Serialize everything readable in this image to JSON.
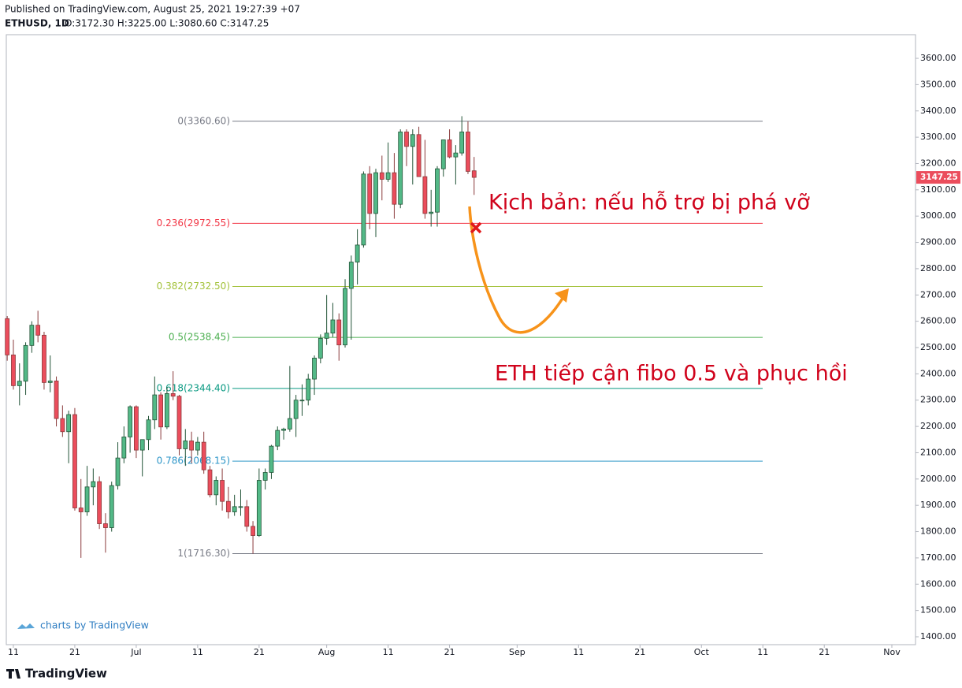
{
  "header": {
    "published": "Published on TradingView.com, August 25, 2021 19:27:39 +07",
    "symbol": "ETHUSD, 1D",
    "ohlc": "O:3172.30 H:3225.00 L:3080.60 C:3147.25"
  },
  "branding": {
    "watermark": "charts by TradingView",
    "footer": "TradingView"
  },
  "chart_data": {
    "type": "candlestick",
    "up_color": "#53b987",
    "down_color": "#eb4d5c",
    "x": [
      "2021-06-10",
      "2021-06-11",
      "2021-06-12",
      "2021-06-13",
      "2021-06-14",
      "2021-06-15",
      "2021-06-16",
      "2021-06-17",
      "2021-06-18",
      "2021-06-19",
      "2021-06-20",
      "2021-06-21",
      "2021-06-22",
      "2021-06-23",
      "2021-06-24",
      "2021-06-25",
      "2021-06-26",
      "2021-06-27",
      "2021-06-28",
      "2021-06-29",
      "2021-06-30",
      "2021-07-01",
      "2021-07-02",
      "2021-07-03",
      "2021-07-04",
      "2021-07-05",
      "2021-07-06",
      "2021-07-07",
      "2021-07-08",
      "2021-07-09",
      "2021-07-10",
      "2021-07-11",
      "2021-07-12",
      "2021-07-13",
      "2021-07-14",
      "2021-07-15",
      "2021-07-16",
      "2021-07-17",
      "2021-07-18",
      "2021-07-19",
      "2021-07-20",
      "2021-07-21",
      "2021-07-22",
      "2021-07-23",
      "2021-07-24",
      "2021-07-25",
      "2021-07-26",
      "2021-07-27",
      "2021-07-28",
      "2021-07-29",
      "2021-07-30",
      "2021-07-31",
      "2021-08-01",
      "2021-08-02",
      "2021-08-03",
      "2021-08-04",
      "2021-08-05",
      "2021-08-06",
      "2021-08-07",
      "2021-08-08",
      "2021-08-09",
      "2021-08-10",
      "2021-08-11",
      "2021-08-12",
      "2021-08-13",
      "2021-08-14",
      "2021-08-15",
      "2021-08-16",
      "2021-08-17",
      "2021-08-18",
      "2021-08-19",
      "2021-08-20",
      "2021-08-21",
      "2021-08-22",
      "2021-08-23",
      "2021-08-24",
      "2021-08-25"
    ],
    "open": [
      2610,
      2472,
      2355,
      2372,
      2508,
      2585,
      2547,
      2367,
      2373,
      2230,
      2180,
      2245,
      1890,
      1875,
      1970,
      1990,
      1830,
      1815,
      1975,
      2080,
      2160,
      2275,
      2110,
      2150,
      2225,
      2320,
      2198,
      2325,
      2315,
      2115,
      2145,
      2110,
      2140,
      2035,
      1940,
      1995,
      1915,
      1875,
      1895,
      1895,
      1820,
      1785,
      1995,
      2025,
      2125,
      2185,
      2190,
      2230,
      2300,
      2300,
      2380,
      2460,
      2535,
      2555,
      2605,
      2510,
      2725,
      2825,
      2890,
      3160,
      3010,
      3165,
      3140,
      3165,
      3045,
      3320,
      3265,
      3310,
      3150,
      3010,
      3015,
      3180,
      3290,
      3225,
      3240,
      3320,
      3172.3
    ],
    "high": [
      2620,
      2530,
      2440,
      2520,
      2600,
      2640,
      2560,
      2470,
      2390,
      2280,
      2260,
      2270,
      2000,
      2050,
      2040,
      2010,
      1870,
      1990,
      2140,
      2200,
      2280,
      2280,
      2150,
      2240,
      2390,
      2330,
      2350,
      2410,
      2320,
      2190,
      2180,
      2160,
      2180,
      2050,
      2010,
      2040,
      1970,
      1940,
      1960,
      1920,
      1840,
      2040,
      2040,
      2130,
      2200,
      2195,
      2430,
      2320,
      2360,
      2400,
      2470,
      2550,
      2700,
      2670,
      2630,
      2760,
      2850,
      2950,
      3170,
      3190,
      3180,
      3230,
      3280,
      3240,
      3330,
      3330,
      3330,
      3340,
      3290,
      3100,
      3190,
      3290,
      3330,
      3270,
      3380,
      3360,
      3225
    ],
    "low": [
      2450,
      2340,
      2280,
      2320,
      2480,
      2520,
      2340,
      2330,
      2200,
      2160,
      2060,
      1880,
      1700,
      1860,
      1900,
      1810,
      1720,
      1800,
      1960,
      2060,
      2100,
      2080,
      2010,
      2110,
      2190,
      2150,
      2190,
      2300,
      2090,
      2050,
      2060,
      2090,
      2020,
      1930,
      1900,
      1880,
      1850,
      1860,
      1860,
      1800,
      1716,
      1780,
      1960,
      2000,
      2110,
      2150,
      2180,
      2160,
      2240,
      2280,
      2320,
      2440,
      2510,
      2540,
      2450,
      2500,
      2530,
      2740,
      2880,
      2950,
      2920,
      3060,
      3130,
      2990,
      3030,
      3190,
      3120,
      3150,
      2990,
      2960,
      2960,
      3150,
      3220,
      3120,
      3230,
      3160,
      3080.6
    ],
    "close": [
      2472,
      2355,
      2372,
      2508,
      2585,
      2547,
      2367,
      2373,
      2230,
      2180,
      2245,
      1890,
      1875,
      1970,
      1990,
      1830,
      1815,
      1975,
      2080,
      2160,
      2275,
      2110,
      2150,
      2225,
      2320,
      2198,
      2325,
      2315,
      2115,
      2145,
      2110,
      2140,
      2035,
      1940,
      1995,
      1915,
      1875,
      1895,
      1895,
      1820,
      1785,
      1995,
      2025,
      2125,
      2185,
      2190,
      2230,
      2300,
      2300,
      2380,
      2460,
      2535,
      2555,
      2605,
      2510,
      2725,
      2825,
      2890,
      3160,
      3010,
      3165,
      3140,
      3165,
      3045,
      3320,
      3265,
      3310,
      3150,
      3010,
      3015,
      3180,
      3290,
      3225,
      3240,
      3320,
      3170,
      3147.25
    ],
    "last_price": {
      "value": 3147.25,
      "label": "3147.25"
    },
    "xlim": [
      "2021-06-10",
      "2021-11-05"
    ],
    "xticks": [
      {
        "value": "2021-06-11",
        "label": "11"
      },
      {
        "value": "2021-06-21",
        "label": "21"
      },
      {
        "value": "2021-07-01",
        "label": "Jul"
      },
      {
        "value": "2021-07-11",
        "label": "11"
      },
      {
        "value": "2021-07-21",
        "label": "21"
      },
      {
        "value": "2021-08-01",
        "label": "Aug"
      },
      {
        "value": "2021-08-11",
        "label": "11"
      },
      {
        "value": "2021-08-21",
        "label": "21"
      },
      {
        "value": "2021-09-01",
        "label": "Sep"
      },
      {
        "value": "2021-09-11",
        "label": "11"
      },
      {
        "value": "2021-09-21",
        "label": "21"
      },
      {
        "value": "2021-10-01",
        "label": "Oct"
      },
      {
        "value": "2021-10-11",
        "label": "11"
      },
      {
        "value": "2021-10-21",
        "label": "21"
      },
      {
        "value": "2021-11-01",
        "label": "Nov"
      }
    ],
    "ylim": [
      1370,
      3690
    ],
    "yticks": [
      {
        "value": 1400,
        "label": "1400.00"
      },
      {
        "value": 1500,
        "label": "1500.00"
      },
      {
        "value": 1600,
        "label": "1600.00"
      },
      {
        "value": 1700,
        "label": "1700.00"
      },
      {
        "value": 1800,
        "label": "1800.00"
      },
      {
        "value": 1900,
        "label": "1900.00"
      },
      {
        "value": 2000,
        "label": "2000.00"
      },
      {
        "value": 2100,
        "label": "2100.00"
      },
      {
        "value": 2200,
        "label": "2200.00"
      },
      {
        "value": 2300,
        "label": "2300.00"
      },
      {
        "value": 2400,
        "label": "2400.00"
      },
      {
        "value": 2500,
        "label": "2500.00"
      },
      {
        "value": 2600,
        "label": "2600.00"
      },
      {
        "value": 2700,
        "label": "2700.00"
      },
      {
        "value": 2800,
        "label": "2800.00"
      },
      {
        "value": 2900,
        "label": "2900.00"
      },
      {
        "value": 3000,
        "label": "3000.00"
      },
      {
        "value": 3100,
        "label": "3100.00"
      },
      {
        "value": 3200,
        "label": "3200.00"
      },
      {
        "value": 3300,
        "label": "3300.00"
      },
      {
        "value": 3400,
        "label": "3400.00"
      },
      {
        "value": 3500,
        "label": "3500.00"
      },
      {
        "value": 3600,
        "label": "3600.00"
      }
    ],
    "fib_levels": [
      {
        "label": "0(3360.60)",
        "value": 3360.6,
        "color": "#787b86"
      },
      {
        "label": "0.236(2972.55)",
        "value": 2972.55,
        "color": "#f23645"
      },
      {
        "label": "0.382(2732.50)",
        "value": 2732.5,
        "color": "#a3c23a"
      },
      {
        "label": "0.5(2538.45)",
        "value": 2538.45,
        "color": "#4caf50"
      },
      {
        "label": "0.618(2344.40)",
        "value": 2344.4,
        "color": "#089981"
      },
      {
        "label": "0.786(2068.15)",
        "value": 2068.15,
        "color": "#2e96c8"
      },
      {
        "label": "1(1716.30)",
        "value": 1716.3,
        "color": "#787b86"
      }
    ],
    "annotations": [
      {
        "text": "Kịch bản: nếu hỗ trợ bị phá vỡ"
      },
      {
        "text": "ETH tiếp cận fibo 0.5 và phục hồi"
      }
    ]
  }
}
